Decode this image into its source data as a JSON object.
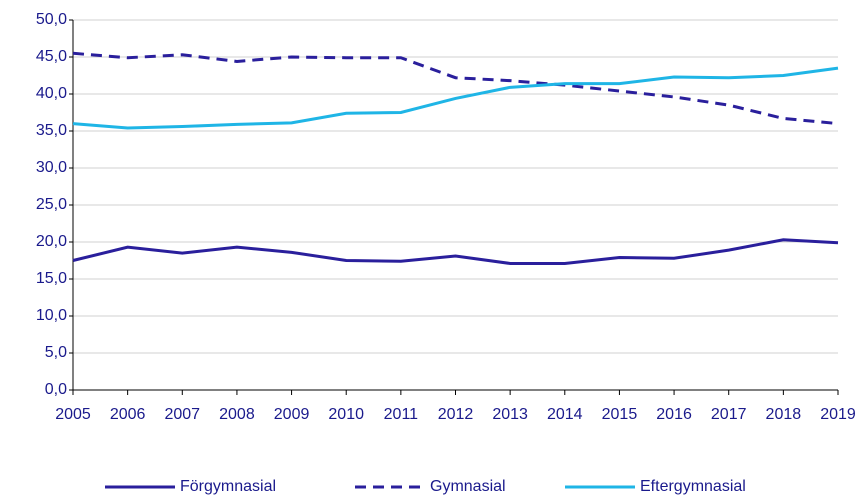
{
  "chart_data": {
    "type": "line",
    "x": [
      2005,
      2006,
      2007,
      2008,
      2009,
      2010,
      2011,
      2012,
      2013,
      2014,
      2015,
      2016,
      2017,
      2018,
      2019
    ],
    "xlim": [
      2005,
      2019
    ],
    "xticks": [
      2005,
      2006,
      2007,
      2008,
      2009,
      2010,
      2011,
      2012,
      2013,
      2014,
      2015,
      2016,
      2017,
      2018,
      2019
    ],
    "ylim": [
      0,
      50
    ],
    "yticks": [
      {
        "value": 0,
        "label": "0,0"
      },
      {
        "value": 5,
        "label": "5,0"
      },
      {
        "value": 10,
        "label": "10,0"
      },
      {
        "value": 15,
        "label": "15,0"
      },
      {
        "value": 20,
        "label": "20,0"
      },
      {
        "value": 25,
        "label": "25,0"
      },
      {
        "value": 30,
        "label": "30,0"
      },
      {
        "value": 35,
        "label": "35,0"
      },
      {
        "value": 40,
        "label": "40,0"
      },
      {
        "value": 45,
        "label": "45,0"
      },
      {
        "value": 50,
        "label": "50,0"
      }
    ],
    "grid": true,
    "legend": "bottom",
    "series": [
      {
        "name": "Förgymnasial",
        "color": "#2a1f9c",
        "style": "solid",
        "values": [
          17.5,
          19.3,
          18.5,
          19.3,
          18.6,
          17.5,
          17.4,
          18.1,
          17.1,
          17.1,
          17.9,
          17.8,
          18.9,
          20.3,
          19.9
        ]
      },
      {
        "name": "Gymnasial",
        "color": "#2a1f9c",
        "style": "dashed",
        "values": [
          45.5,
          44.9,
          45.3,
          44.4,
          45.0,
          44.9,
          44.9,
          42.2,
          41.8,
          41.2,
          40.4,
          39.6,
          38.5,
          36.7,
          36.0
        ]
      },
      {
        "name": "Eftergymnasial",
        "color": "#1fb5e6",
        "style": "solid",
        "values": [
          36.0,
          35.4,
          35.6,
          35.9,
          36.1,
          37.4,
          37.5,
          39.4,
          40.9,
          41.4,
          41.4,
          42.3,
          42.2,
          42.5,
          43.5
        ]
      }
    ]
  }
}
